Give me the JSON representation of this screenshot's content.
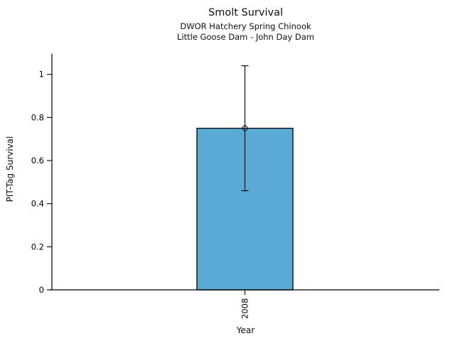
{
  "chart_data": {
    "type": "bar",
    "title": "Smolt Survival",
    "subtitle_lines": [
      "DWOR Hatchery Spring Chinook",
      "Little Goose Dam - John Day Dam"
    ],
    "xlabel": "Year",
    "ylabel": "PIT-Tag Survival",
    "categories": [
      "2008"
    ],
    "values": [
      0.75
    ],
    "error_bars": [
      {
        "low": 0.46,
        "high": 1.04
      }
    ],
    "point_markers": [
      0.75
    ],
    "ylim": [
      0,
      1.096
    ],
    "yticks": [
      0,
      0.2,
      0.4,
      0.6,
      0.8,
      1
    ],
    "ytick_labels": [
      "0",
      "0.2",
      "0.4",
      "0.6",
      "0.8",
      "1"
    ],
    "grid": false,
    "legend": "none",
    "bar_color": "#5BAAD5",
    "bar_edge_color": "#000000",
    "error_color": "#000000",
    "axis_color": "#000000",
    "background": "#FFFFFF",
    "xtick_rotation": 90
  }
}
